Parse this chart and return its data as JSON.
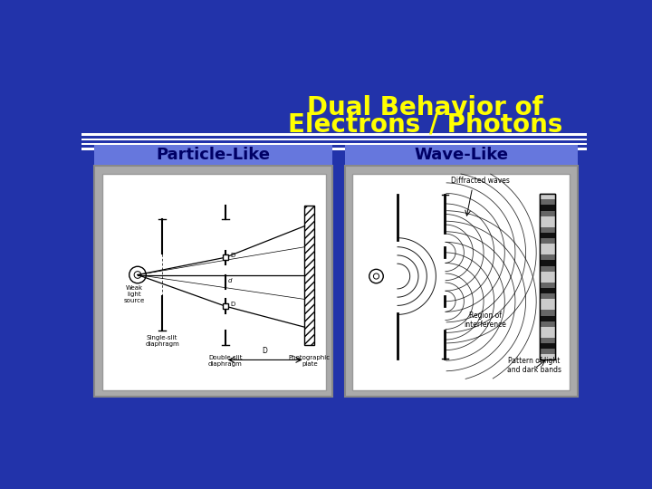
{
  "title_line1": "Dual Behavior of",
  "title_line2": "Electrons / Photons",
  "title_color": "#FFFF00",
  "title_fontsize": 20,
  "background_color": "#2233AA",
  "stripe_color": "#FFFFFF",
  "label_left": "Particle-Like",
  "label_right": "Wave-Like",
  "label_bg_color": "#6677DD",
  "label_text_color": "#000066",
  "label_fontsize": 13,
  "box_outer_color": "#AAAAAA",
  "box_inner_color": "#FFFFFF"
}
